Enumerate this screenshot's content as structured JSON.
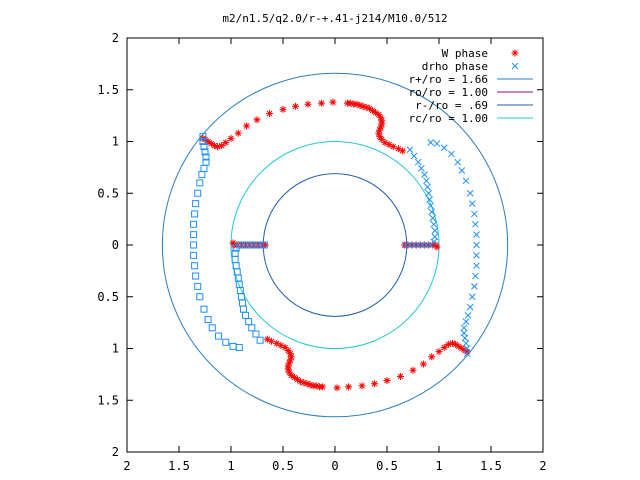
{
  "chart_data": {
    "type": "scatter",
    "title": "m2/n1.5/q2.0/r-+.41-j214/M10.0/512",
    "xlabel": "",
    "ylabel": "",
    "xlim": [
      -2,
      2
    ],
    "ylim": [
      -2,
      2
    ],
    "x_tick_values": [
      -2,
      -1.5,
      -1,
      -0.5,
      0,
      0.5,
      1,
      1.5,
      2
    ],
    "x_tick_labels": [
      "2",
      "1.5",
      "1",
      "0.5",
      "0",
      "0.5",
      "1",
      "1.5",
      "2"
    ],
    "y_tick_values": [
      2,
      1.5,
      1,
      0.5,
      0,
      -0.5,
      -1,
      -1.5,
      -2
    ],
    "y_tick_labels": [
      "2",
      "1.5",
      "1",
      "0.5",
      "0",
      "0.5",
      "1",
      "1.5",
      "2"
    ],
    "grid": false,
    "legend_position": "top-right",
    "legend": [
      {
        "label": "W phase",
        "marker": "plus",
        "color": "#ff0000"
      },
      {
        "label": "drho phase",
        "marker": "cross",
        "color": "#1e90ff"
      },
      {
        "label": "r+/ro = 1.66",
        "marker": "line",
        "color": "#2a7fc1"
      },
      {
        "label": "ro/ro = 1.00",
        "marker": "line",
        "color": "#8b0f6f"
      },
      {
        "label": "r-/ro = .69",
        "marker": "line",
        "color": "#1f5fae"
      },
      {
        "label": "rc/ro = 1.00",
        "marker": "line",
        "color": "#1ec8d2"
      }
    ],
    "circles": [
      {
        "name": "r+/ro",
        "radius": 1.66,
        "color": "#2a7fc1"
      },
      {
        "name": "r-/ro",
        "radius": 0.69,
        "color": "#1f5fae"
      },
      {
        "name": "rc/ro",
        "radius": 1.0,
        "color": "#1ec8d2"
      }
    ],
    "series": [
      {
        "name": "W phase",
        "color": "#ff0000",
        "points": [
          [
            -0.67,
            0.0
          ],
          [
            -0.7,
            0.0
          ],
          [
            -0.74,
            0.0
          ],
          [
            -0.78,
            0.0
          ],
          [
            -0.82,
            0.0
          ],
          [
            -0.86,
            0.0
          ],
          [
            -0.9,
            0.0
          ],
          [
            -0.94,
            0.0
          ],
          [
            -0.97,
            0.0
          ],
          [
            -0.98,
            0.02
          ],
          [
            -1.27,
            1.03
          ],
          [
            -1.25,
            1.02
          ],
          [
            -1.22,
            1.0
          ],
          [
            -1.19,
            0.98
          ],
          [
            -1.16,
            0.96
          ],
          [
            -1.13,
            0.95
          ],
          [
            -1.09,
            0.96
          ],
          [
            -1.05,
            0.99
          ],
          [
            -1.0,
            1.03
          ],
          [
            -0.93,
            1.08
          ],
          [
            -0.85,
            1.15
          ],
          [
            -0.75,
            1.21
          ],
          [
            -0.63,
            1.27
          ],
          [
            -0.5,
            1.31
          ],
          [
            -0.38,
            1.34
          ],
          [
            -0.26,
            1.36
          ],
          [
            -0.13,
            1.37
          ],
          [
            -0.02,
            1.38
          ],
          [
            0.12,
            1.37
          ],
          [
            0.15,
            1.37
          ],
          [
            0.18,
            1.36
          ],
          [
            0.21,
            1.36
          ],
          [
            0.24,
            1.35
          ],
          [
            0.27,
            1.34
          ],
          [
            0.3,
            1.33
          ],
          [
            0.33,
            1.32
          ],
          [
            0.36,
            1.3
          ],
          [
            0.39,
            1.28
          ],
          [
            0.42,
            1.26
          ],
          [
            0.44,
            1.23
          ],
          [
            0.45,
            1.2
          ],
          [
            0.45,
            1.17
          ],
          [
            0.44,
            1.14
          ],
          [
            0.43,
            1.11
          ],
          [
            0.42,
            1.08
          ],
          [
            0.43,
            1.05
          ],
          [
            0.45,
            1.02
          ],
          [
            0.48,
            0.99
          ],
          [
            0.52,
            0.97
          ],
          [
            0.56,
            0.95
          ],
          [
            0.61,
            0.93
          ],
          [
            0.65,
            0.91
          ],
          [
            0.67,
            0.0
          ],
          [
            0.7,
            0.0
          ],
          [
            0.74,
            0.0
          ],
          [
            0.78,
            0.0
          ],
          [
            0.82,
            0.0
          ],
          [
            0.86,
            0.0
          ],
          [
            0.9,
            0.0
          ],
          [
            0.94,
            0.0
          ],
          [
            0.97,
            0.0
          ],
          [
            0.98,
            -0.02
          ],
          [
            1.27,
            -1.03
          ],
          [
            1.25,
            -1.02
          ],
          [
            1.22,
            -1.0
          ],
          [
            1.19,
            -0.98
          ],
          [
            1.16,
            -0.96
          ],
          [
            1.13,
            -0.95
          ],
          [
            1.09,
            -0.96
          ],
          [
            1.05,
            -0.99
          ],
          [
            1.0,
            -1.03
          ],
          [
            0.93,
            -1.08
          ],
          [
            0.85,
            -1.15
          ],
          [
            0.75,
            -1.21
          ],
          [
            0.63,
            -1.27
          ],
          [
            0.5,
            -1.31
          ],
          [
            0.38,
            -1.34
          ],
          [
            0.26,
            -1.36
          ],
          [
            0.13,
            -1.37
          ],
          [
            0.02,
            -1.38
          ],
          [
            -0.12,
            -1.37
          ],
          [
            -0.15,
            -1.37
          ],
          [
            -0.18,
            -1.36
          ],
          [
            -0.21,
            -1.36
          ],
          [
            -0.24,
            -1.35
          ],
          [
            -0.27,
            -1.34
          ],
          [
            -0.3,
            -1.33
          ],
          [
            -0.33,
            -1.32
          ],
          [
            -0.36,
            -1.3
          ],
          [
            -0.39,
            -1.28
          ],
          [
            -0.42,
            -1.26
          ],
          [
            -0.44,
            -1.23
          ],
          [
            -0.45,
            -1.2
          ],
          [
            -0.45,
            -1.17
          ],
          [
            -0.44,
            -1.14
          ],
          [
            -0.43,
            -1.11
          ],
          [
            -0.42,
            -1.08
          ],
          [
            -0.43,
            -1.05
          ],
          [
            -0.45,
            -1.02
          ],
          [
            -0.48,
            -0.99
          ],
          [
            -0.52,
            -0.97
          ],
          [
            -0.56,
            -0.95
          ],
          [
            -0.61,
            -0.93
          ],
          [
            -0.65,
            -0.91
          ]
        ]
      },
      {
        "name": "drho phase",
        "color": "#1e90ff",
        "points": [
          [
            -1.27,
            1.05
          ],
          [
            -1.27,
            1.0
          ],
          [
            -1.26,
            0.95
          ],
          [
            -1.25,
            0.9
          ],
          [
            -1.24,
            0.85
          ],
          [
            -1.24,
            0.8
          ],
          [
            -1.26,
            0.74
          ],
          [
            -1.28,
            0.68
          ],
          [
            -1.3,
            0.6
          ],
          [
            -1.32,
            0.5
          ],
          [
            -1.34,
            0.4
          ],
          [
            -1.35,
            0.3
          ],
          [
            -1.36,
            0.2
          ],
          [
            -1.36,
            0.1
          ],
          [
            -1.36,
            0.0
          ],
          [
            -1.36,
            -0.1
          ],
          [
            -1.35,
            -0.2
          ],
          [
            -1.34,
            -0.3
          ],
          [
            -1.32,
            -0.4
          ],
          [
            -1.3,
            -0.5
          ],
          [
            -1.26,
            -0.62
          ],
          [
            -1.22,
            -0.72
          ],
          [
            -1.18,
            -0.8
          ],
          [
            -1.12,
            -0.88
          ],
          [
            -1.05,
            -0.94
          ],
          [
            -0.98,
            -0.98
          ],
          [
            -0.92,
            -0.99
          ],
          [
            -0.68,
            0.0
          ],
          [
            -0.72,
            0.0
          ],
          [
            -0.76,
            0.0
          ],
          [
            -0.8,
            0.0
          ],
          [
            -0.84,
            0.0
          ],
          [
            -0.88,
            0.0
          ],
          [
            -0.92,
            0.0
          ],
          [
            -0.95,
            -0.03
          ],
          [
            -0.96,
            -0.08
          ],
          [
            -0.96,
            -0.14
          ],
          [
            -0.95,
            -0.2
          ],
          [
            -0.94,
            -0.26
          ],
          [
            -0.93,
            -0.32
          ],
          [
            -0.92,
            -0.38
          ],
          [
            -0.91,
            -0.44
          ],
          [
            -0.9,
            -0.5
          ],
          [
            -0.89,
            -0.56
          ],
          [
            -0.88,
            -0.62
          ],
          [
            -0.86,
            -0.68
          ],
          [
            -0.83,
            -0.74
          ],
          [
            -0.8,
            -0.8
          ],
          [
            -0.76,
            -0.86
          ],
          [
            -0.72,
            -0.92
          ],
          [
            1.27,
            -1.05
          ],
          [
            1.27,
            -1.0
          ],
          [
            1.26,
            -0.95
          ],
          [
            1.25,
            -0.9
          ],
          [
            1.24,
            -0.85
          ],
          [
            1.24,
            -0.8
          ],
          [
            1.26,
            -0.74
          ],
          [
            1.28,
            -0.68
          ],
          [
            1.3,
            -0.6
          ],
          [
            1.32,
            -0.5
          ],
          [
            1.34,
            -0.4
          ],
          [
            1.35,
            -0.3
          ],
          [
            1.36,
            -0.2
          ],
          [
            1.36,
            -0.1
          ],
          [
            1.36,
            0.0
          ],
          [
            1.36,
            0.1
          ],
          [
            1.35,
            0.2
          ],
          [
            1.34,
            0.3
          ],
          [
            1.32,
            0.4
          ],
          [
            1.3,
            0.5
          ],
          [
            1.26,
            0.62
          ],
          [
            1.22,
            0.72
          ],
          [
            1.18,
            0.8
          ],
          [
            1.12,
            0.88
          ],
          [
            1.05,
            0.94
          ],
          [
            0.98,
            0.98
          ],
          [
            0.92,
            0.99
          ],
          [
            0.68,
            0.0
          ],
          [
            0.72,
            0.0
          ],
          [
            0.76,
            0.0
          ],
          [
            0.8,
            0.0
          ],
          [
            0.84,
            0.0
          ],
          [
            0.88,
            0.0
          ],
          [
            0.92,
            0.0
          ],
          [
            0.95,
            0.03
          ],
          [
            0.96,
            0.08
          ],
          [
            0.96,
            0.14
          ],
          [
            0.95,
            0.2
          ],
          [
            0.94,
            0.26
          ],
          [
            0.93,
            0.32
          ],
          [
            0.92,
            0.38
          ],
          [
            0.91,
            0.44
          ],
          [
            0.9,
            0.5
          ],
          [
            0.89,
            0.56
          ],
          [
            0.88,
            0.62
          ],
          [
            0.86,
            0.68
          ],
          [
            0.83,
            0.74
          ],
          [
            0.8,
            0.8
          ],
          [
            0.76,
            0.86
          ],
          [
            0.72,
            0.92
          ]
        ]
      }
    ]
  }
}
